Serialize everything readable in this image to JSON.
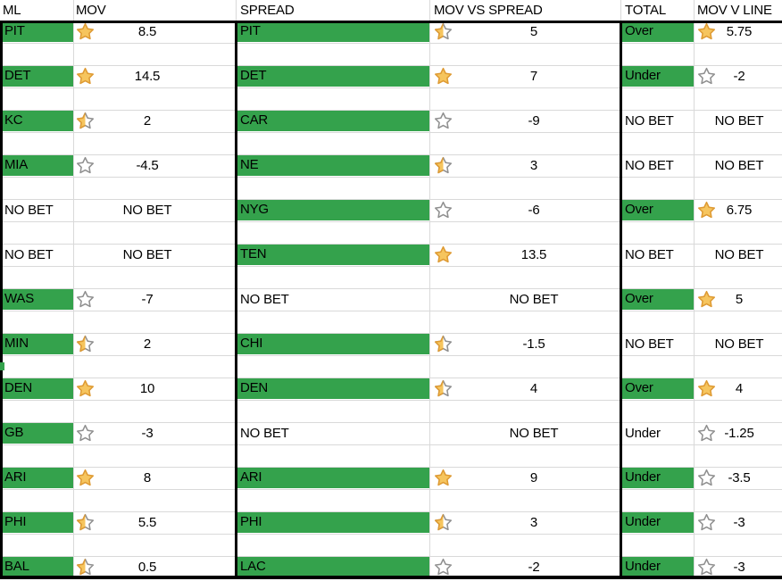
{
  "headers": {
    "ml": "ML",
    "mov": "MOV",
    "spread": "SPREAD",
    "mov_vs_spread": "MOV VS SPREAD",
    "total": "TOTAL",
    "mov_v_line": "MOV V LINE"
  },
  "colors": {
    "highlight_green": "#34A24C",
    "star_fill": "#F6C55E",
    "star_stroke_gold": "#DE9A33",
    "star_stroke_gray": "#8F8F8F",
    "gridline": "#D9D9D9",
    "border": "#000000",
    "text": "#000000",
    "background": "#FFFFFF"
  },
  "rows": [
    {
      "ml": {
        "label": "PIT",
        "star": "full",
        "value": "8.5",
        "highlight": true
      },
      "spread": {
        "label": "PIT",
        "star": "half",
        "value": "5",
        "highlight": true
      },
      "total": {
        "label": "Over",
        "star": "full",
        "value": "5.75",
        "highlight": true
      }
    },
    {
      "ml": {
        "label": "DET",
        "star": "full",
        "value": "14.5",
        "highlight": true
      },
      "spread": {
        "label": "DET",
        "star": "full",
        "value": "7",
        "highlight": true
      },
      "total": {
        "label": "Under",
        "star": "empty",
        "value": "-2",
        "highlight": true
      }
    },
    {
      "ml": {
        "label": "KC",
        "star": "half",
        "value": "2",
        "highlight": true
      },
      "spread": {
        "label": "CAR",
        "star": "empty",
        "value": "-9",
        "highlight": true
      },
      "total": {
        "label": "NO BET",
        "star": "none",
        "value": "NO BET",
        "highlight": false
      }
    },
    {
      "ml": {
        "label": "MIA",
        "star": "empty",
        "value": "-4.5",
        "highlight": true
      },
      "spread": {
        "label": "NE",
        "star": "half",
        "value": "3",
        "highlight": true
      },
      "total": {
        "label": "NO BET",
        "star": "none",
        "value": "NO BET",
        "highlight": false
      }
    },
    {
      "ml": {
        "label": "NO BET",
        "star": "none",
        "value": "NO BET",
        "highlight": false
      },
      "spread": {
        "label": "NYG",
        "star": "empty",
        "value": "-6",
        "highlight": true
      },
      "total": {
        "label": "Over",
        "star": "full",
        "value": "6.75",
        "highlight": true
      }
    },
    {
      "ml": {
        "label": "NO BET",
        "star": "none",
        "value": "NO BET",
        "highlight": false
      },
      "spread": {
        "label": "TEN",
        "star": "full",
        "value": "13.5",
        "highlight": true
      },
      "total": {
        "label": "NO BET",
        "star": "none",
        "value": "NO BET",
        "highlight": false
      }
    },
    {
      "ml": {
        "label": "WAS",
        "star": "empty",
        "value": "-7",
        "highlight": true
      },
      "spread": {
        "label": "NO BET",
        "star": "none",
        "value": "NO BET",
        "highlight": false
      },
      "total": {
        "label": "Over",
        "star": "full",
        "value": "5",
        "highlight": true
      }
    },
    {
      "ml": {
        "label": "MIN",
        "star": "half",
        "value": "2",
        "highlight": true
      },
      "spread": {
        "label": "CHI",
        "star": "half",
        "value": "-1.5",
        "highlight": true
      },
      "total": {
        "label": "NO BET",
        "star": "none",
        "value": "NO BET",
        "highlight": false
      }
    },
    {
      "ml": {
        "label": "DEN",
        "star": "full",
        "value": "10",
        "highlight": true
      },
      "spread": {
        "label": "DEN",
        "star": "half",
        "value": "4",
        "highlight": true
      },
      "total": {
        "label": "Over",
        "star": "full",
        "value": "4",
        "highlight": true
      }
    },
    {
      "ml": {
        "label": "GB",
        "star": "empty",
        "value": "-3",
        "highlight": true
      },
      "spread": {
        "label": "NO BET",
        "star": "none",
        "value": "NO BET",
        "highlight": false
      },
      "total": {
        "label": "Under",
        "star": "empty",
        "value": "-1.25",
        "highlight": false
      }
    },
    {
      "ml": {
        "label": "ARI",
        "star": "full",
        "value": "8",
        "highlight": true
      },
      "spread": {
        "label": "ARI",
        "star": "full",
        "value": "9",
        "highlight": true
      },
      "total": {
        "label": "Under",
        "star": "empty",
        "value": "-3.5",
        "highlight": true
      }
    },
    {
      "ml": {
        "label": "PHI",
        "star": "half",
        "value": "5.5",
        "highlight": true
      },
      "spread": {
        "label": "PHI",
        "star": "half",
        "value": "3",
        "highlight": true
      },
      "total": {
        "label": "Under",
        "star": "empty",
        "value": "-3",
        "highlight": true
      }
    },
    {
      "ml": {
        "label": "BAL",
        "star": "half",
        "value": "0.5",
        "highlight": true
      },
      "spread": {
        "label": "LAC",
        "star": "empty",
        "value": "-2",
        "highlight": true
      },
      "total": {
        "label": "Under",
        "star": "empty",
        "value": "-3",
        "highlight": true
      }
    }
  ]
}
